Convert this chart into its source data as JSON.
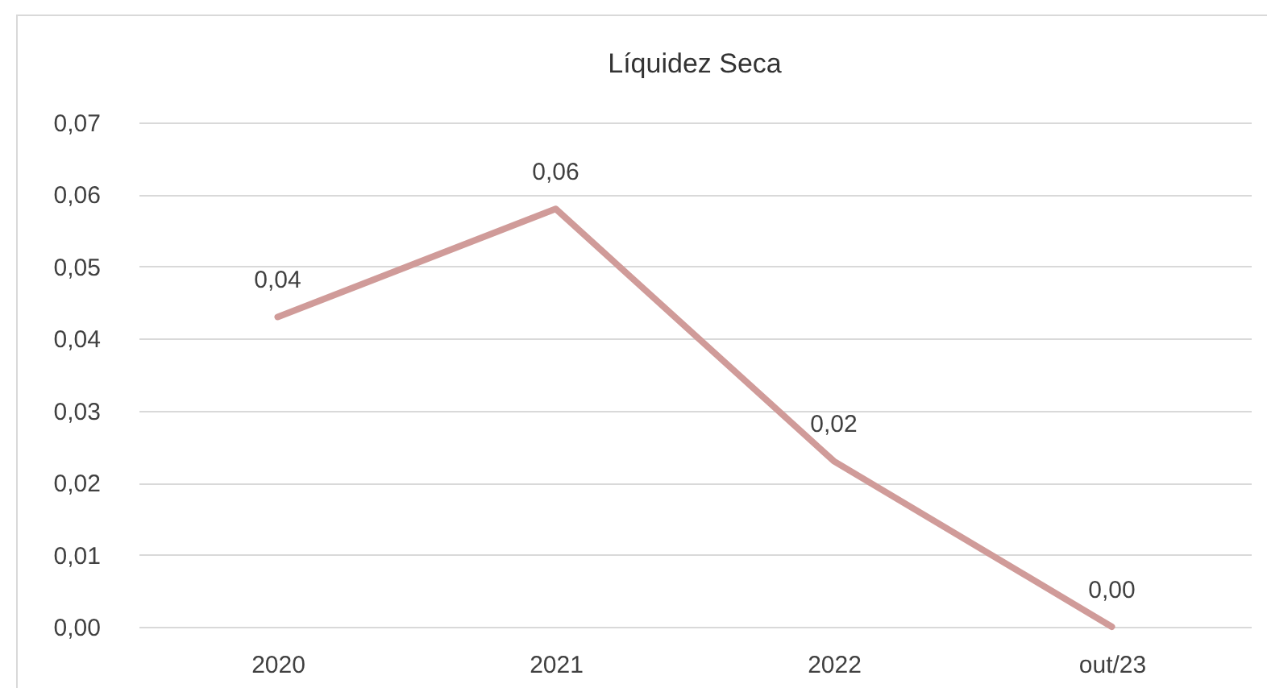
{
  "chart_data": {
    "type": "line",
    "title": "Líquidez Seca",
    "categories": [
      "2020",
      "2021",
      "2022",
      "out/23"
    ],
    "values": [
      0.043,
      0.058,
      0.023,
      0.0
    ],
    "value_labels": [
      "0,04",
      "0,06",
      "0,02",
      "0,00"
    ],
    "color": "#d09b99",
    "line_style": "solid",
    "ylim": [
      0,
      0.07
    ],
    "yticks": [
      {
        "value": 0,
        "label": "0,00"
      },
      {
        "value": 0.01,
        "label": "0,01"
      },
      {
        "value": 0.02,
        "label": "0,02"
      },
      {
        "value": 0.03,
        "label": "0,03"
      },
      {
        "value": 0.04,
        "label": "0,04"
      },
      {
        "value": 0.05,
        "label": "0,05"
      },
      {
        "value": 0.06,
        "label": "0,06"
      },
      {
        "value": 0.07,
        "label": "0,07"
      }
    ],
    "grid": "y"
  }
}
